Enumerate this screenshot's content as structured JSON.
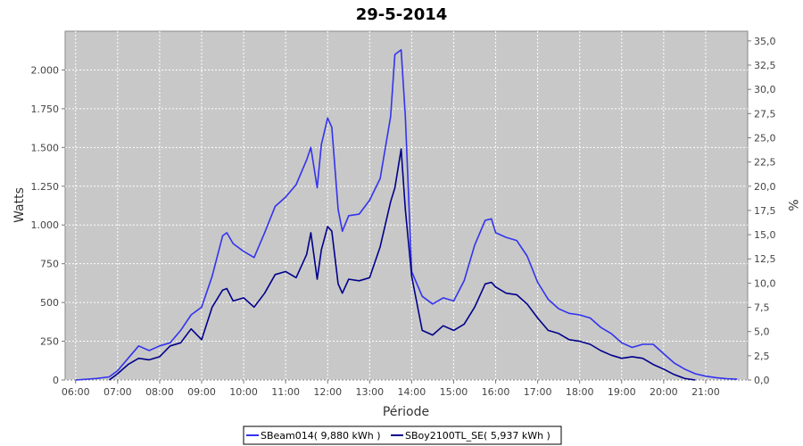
{
  "chart_data": {
    "type": "line",
    "title": "29-5-2014",
    "xlabel": "Période",
    "ylabel": "Watts",
    "y2label": "%",
    "grid": true,
    "legend_position": "bottom",
    "x_unit": "hours",
    "xlim": [
      5.75,
      22.0
    ],
    "ylim": [
      0,
      2250
    ],
    "y2lim": [
      0,
      36.0
    ],
    "x_ticks": [
      {
        "value": 6,
        "label": "06:00"
      },
      {
        "value": 7,
        "label": "07:00"
      },
      {
        "value": 8,
        "label": "08:00"
      },
      {
        "value": 9,
        "label": "09:00"
      },
      {
        "value": 10,
        "label": "10:00"
      },
      {
        "value": 11,
        "label": "11:00"
      },
      {
        "value": 12,
        "label": "12:00"
      },
      {
        "value": 13,
        "label": "13:00"
      },
      {
        "value": 14,
        "label": "14:00"
      },
      {
        "value": 15,
        "label": "15:00"
      },
      {
        "value": 16,
        "label": "16:00"
      },
      {
        "value": 17,
        "label": "17:00"
      },
      {
        "value": 18,
        "label": "18:00"
      },
      {
        "value": 19,
        "label": "19:00"
      },
      {
        "value": 20,
        "label": "20:00"
      },
      {
        "value": 21,
        "label": "21:00"
      }
    ],
    "y_ticks": [
      {
        "value": 0,
        "label": "0"
      },
      {
        "value": 250,
        "label": "250"
      },
      {
        "value": 500,
        "label": "500"
      },
      {
        "value": 750,
        "label": "750"
      },
      {
        "value": 1000,
        "label": "1.000"
      },
      {
        "value": 1250,
        "label": "1.250"
      },
      {
        "value": 1500,
        "label": "1.500"
      },
      {
        "value": 1750,
        "label": "1.750"
      },
      {
        "value": 2000,
        "label": "2.000"
      }
    ],
    "y2_ticks": [
      {
        "value": 0,
        "label": "0,0"
      },
      {
        "value": 2.5,
        "label": "2,5"
      },
      {
        "value": 5,
        "label": "5,0"
      },
      {
        "value": 7.5,
        "label": "7,5"
      },
      {
        "value": 10,
        "label": "10,0"
      },
      {
        "value": 12.5,
        "label": "12,5"
      },
      {
        "value": 15,
        "label": "15,0"
      },
      {
        "value": 17.5,
        "label": "17,5"
      },
      {
        "value": 20,
        "label": "20,0"
      },
      {
        "value": 22.5,
        "label": "22,5"
      },
      {
        "value": 25,
        "label": "25,0"
      },
      {
        "value": 27.5,
        "label": "27,5"
      },
      {
        "value": 30,
        "label": "30,0"
      },
      {
        "value": 32.5,
        "label": "32,5"
      },
      {
        "value": 35,
        "label": "35,0"
      }
    ],
    "series": [
      {
        "name": "SBeam014( 9,880 kWh )",
        "color": "#3333ee",
        "x": [
          6.0,
          6.5,
          6.8,
          7.0,
          7.25,
          7.5,
          7.75,
          8.0,
          8.25,
          8.5,
          8.75,
          9.0,
          9.25,
          9.5,
          9.6,
          9.75,
          10.0,
          10.25,
          10.5,
          10.75,
          11.0,
          11.25,
          11.5,
          11.6,
          11.75,
          11.85,
          12.0,
          12.1,
          12.25,
          12.35,
          12.5,
          12.75,
          13.0,
          13.25,
          13.5,
          13.6,
          13.75,
          13.85,
          14.0,
          14.25,
          14.5,
          14.75,
          15.0,
          15.25,
          15.5,
          15.75,
          15.9,
          16.0,
          16.25,
          16.5,
          16.75,
          17.0,
          17.25,
          17.5,
          17.75,
          18.0,
          18.25,
          18.5,
          18.75,
          19.0,
          19.25,
          19.5,
          19.75,
          20.0,
          20.25,
          20.5,
          20.75,
          21.0,
          21.25,
          21.5,
          21.75
        ],
        "values": [
          0,
          10,
          20,
          60,
          140,
          220,
          190,
          220,
          240,
          320,
          420,
          470,
          670,
          930,
          950,
          880,
          830,
          790,
          950,
          1120,
          1180,
          1260,
          1420,
          1500,
          1240,
          1520,
          1690,
          1630,
          1100,
          960,
          1060,
          1070,
          1160,
          1300,
          1700,
          2100,
          2130,
          1700,
          700,
          540,
          490,
          530,
          510,
          640,
          870,
          1030,
          1040,
          950,
          920,
          900,
          800,
          630,
          520,
          460,
          430,
          420,
          400,
          340,
          300,
          240,
          210,
          230,
          230,
          170,
          110,
          70,
          40,
          25,
          15,
          8,
          5
        ]
      },
      {
        "name": "SBoy2100TL_SE( 5,937 kWh )",
        "color": "#00008b",
        "x": [
          6.8,
          7.0,
          7.25,
          7.5,
          7.75,
          8.0,
          8.25,
          8.5,
          8.75,
          9.0,
          9.25,
          9.5,
          9.6,
          9.75,
          10.0,
          10.25,
          10.5,
          10.75,
          11.0,
          11.25,
          11.5,
          11.6,
          11.75,
          11.85,
          12.0,
          12.1,
          12.25,
          12.35,
          12.5,
          12.75,
          13.0,
          13.25,
          13.5,
          13.6,
          13.75,
          13.85,
          14.0,
          14.25,
          14.5,
          14.75,
          15.0,
          15.25,
          15.5,
          15.75,
          15.9,
          16.0,
          16.25,
          16.5,
          16.75,
          17.0,
          17.25,
          17.5,
          17.75,
          18.0,
          18.25,
          18.5,
          18.75,
          19.0,
          19.25,
          19.5,
          19.75,
          20.0,
          20.25,
          20.5,
          20.75
        ],
        "values": [
          0,
          40,
          100,
          140,
          130,
          150,
          220,
          240,
          330,
          260,
          470,
          580,
          590,
          510,
          530,
          470,
          560,
          680,
          700,
          660,
          810,
          950,
          650,
          840,
          990,
          960,
          620,
          560,
          650,
          640,
          660,
          860,
          1150,
          1240,
          1490,
          1100,
          670,
          320,
          290,
          350,
          320,
          360,
          470,
          620,
          630,
          600,
          560,
          550,
          490,
          400,
          320,
          300,
          260,
          250,
          230,
          190,
          160,
          140,
          150,
          140,
          100,
          70,
          35,
          10,
          0
        ]
      }
    ]
  }
}
